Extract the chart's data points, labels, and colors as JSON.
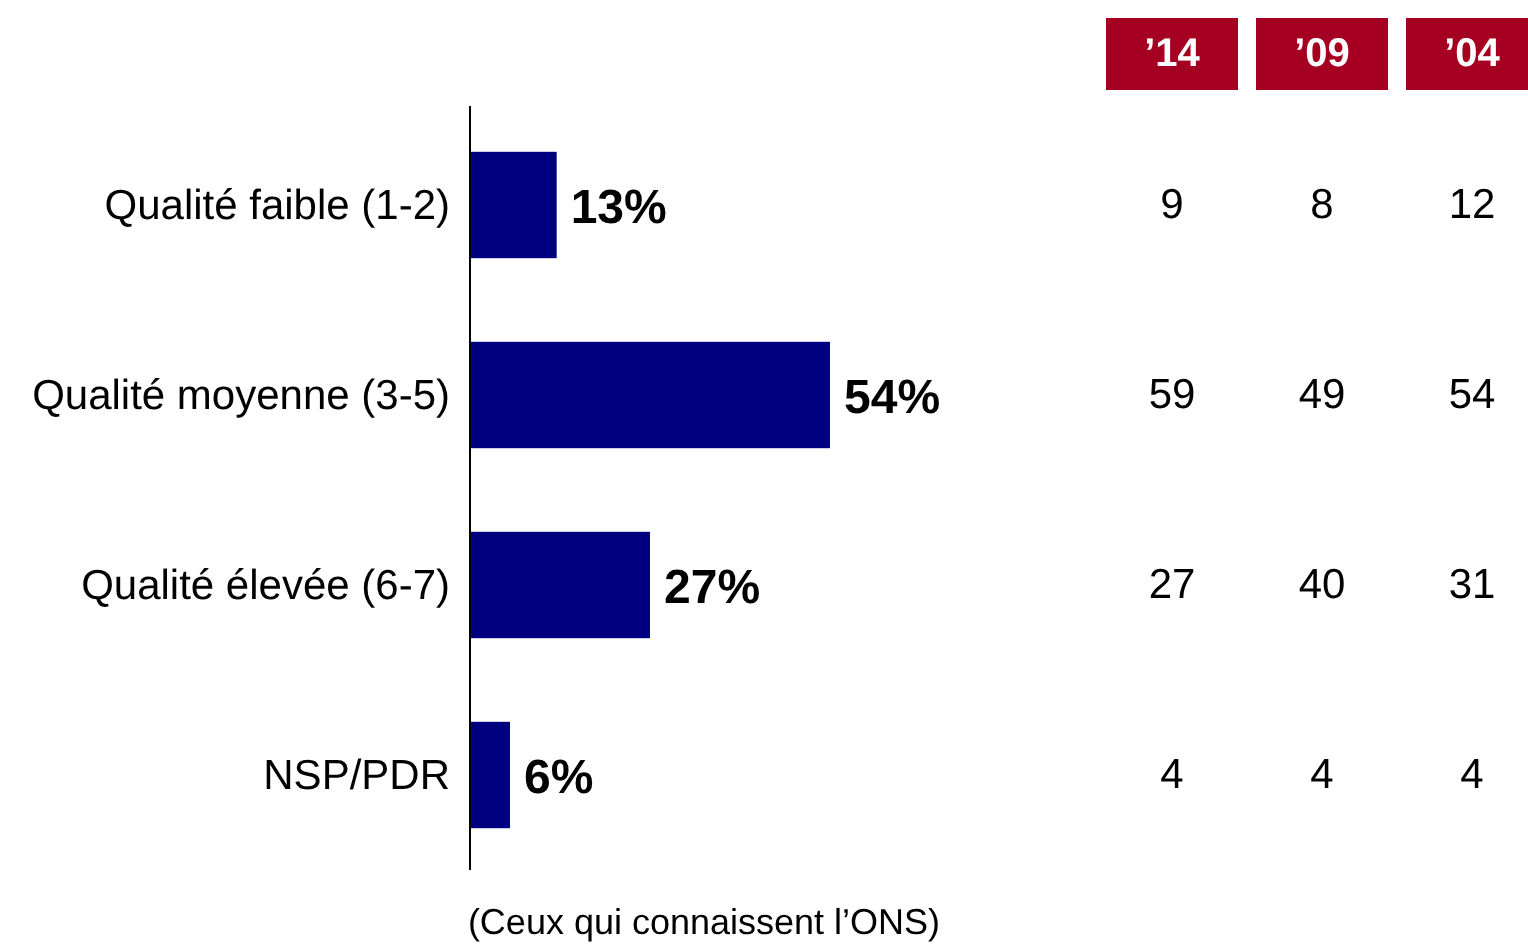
{
  "chart_data": [
    {
      "type": "bar",
      "orientation": "horizontal",
      "categories": [
        "Qualité faible (1-2)",
        "Qualité moyenne (3-5)",
        "Qualité élevée (6-7)",
        "NSP/PDR"
      ],
      "values": [
        13,
        54,
        27,
        6
      ],
      "color": "#000080",
      "value_labels": [
        "13%",
        "54%",
        "27%",
        "6%"
      ],
      "annotations": [
        "(Ceux qui connaissent l’ONS)"
      ]
    },
    {
      "type": "other",
      "title": "’14",
      "values": [
        9,
        59,
        27,
        4
      ],
      "data_labels": true
    },
    {
      "type": "other",
      "title": "’09",
      "values": [
        8,
        49,
        40,
        4
      ],
      "data_labels": true
    },
    {
      "type": "other",
      "title": "’04",
      "values": [
        12,
        54,
        31,
        4
      ],
      "data_labels": true
    }
  ]
}
